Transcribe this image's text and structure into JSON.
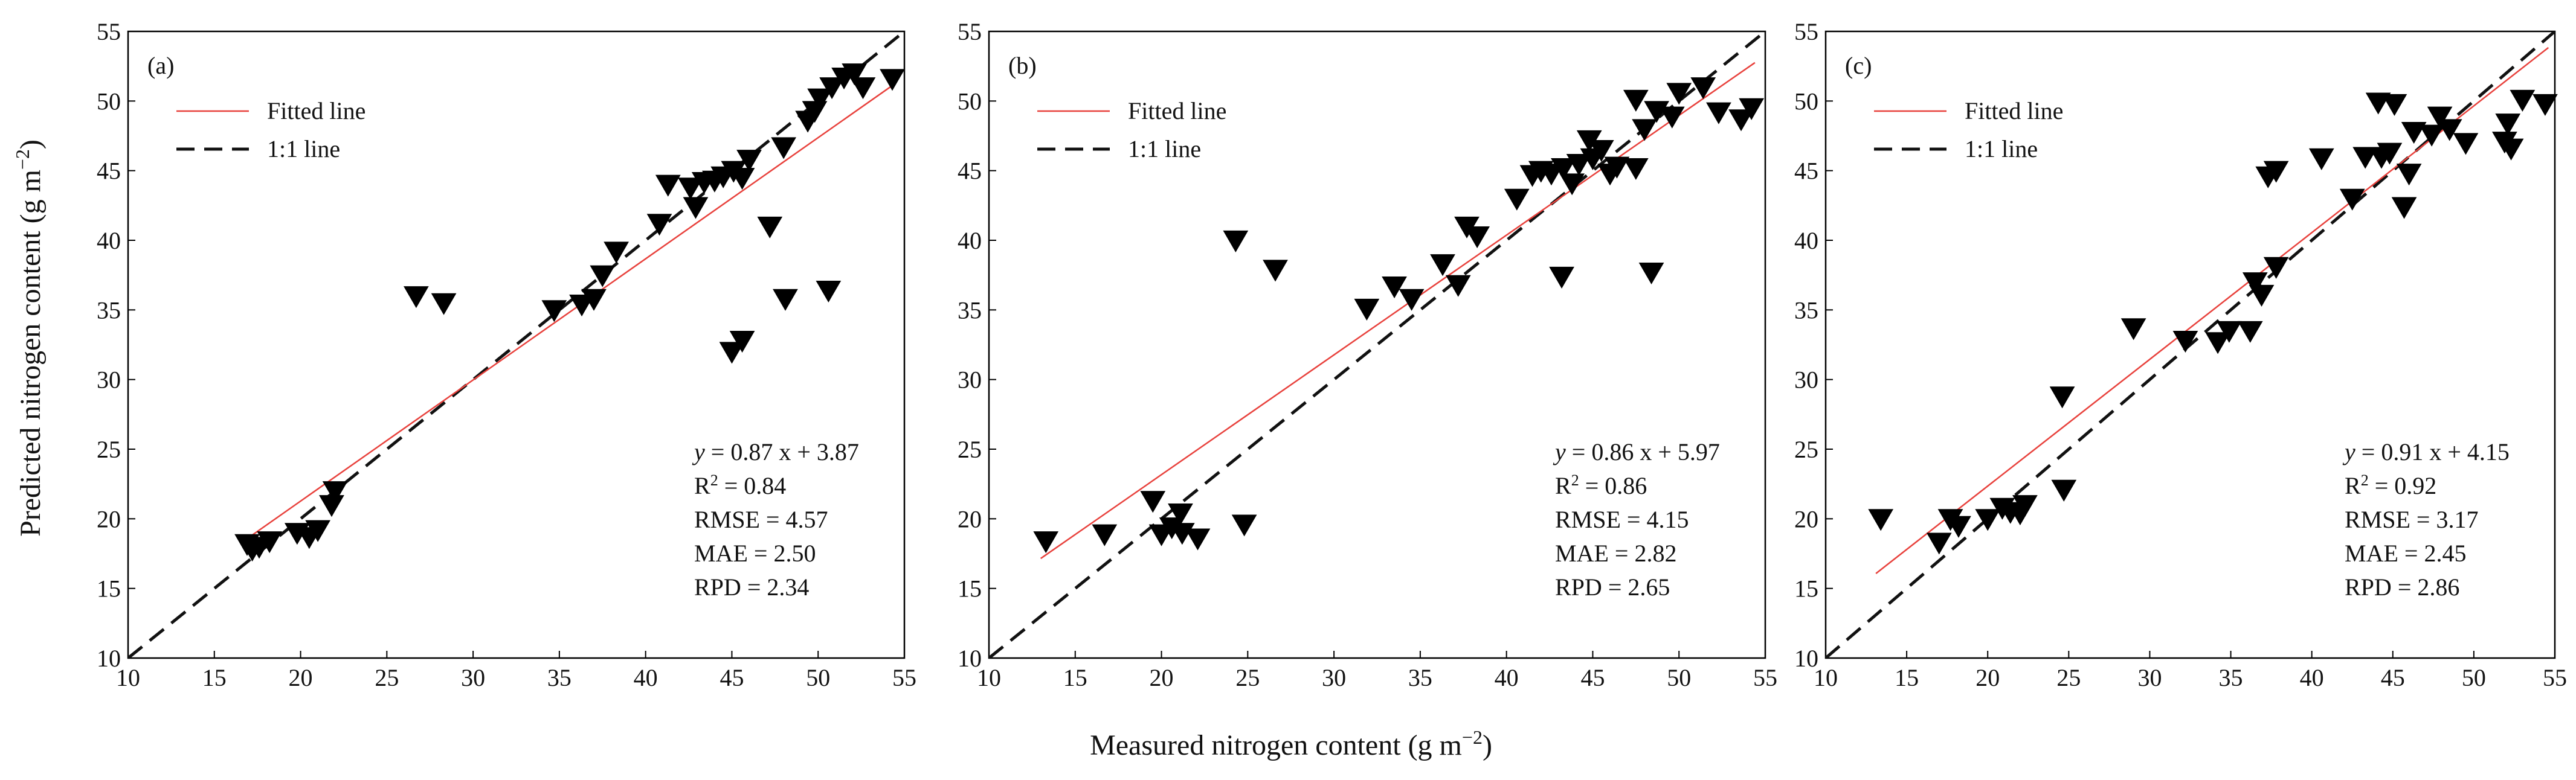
{
  "figure": {
    "ylabel": "Predicted nitrogen content (g m",
    "ylabel_exp": "−2",
    "ylabel_close": ")",
    "xlabel": "Measured nitrogen content (g m",
    "xlabel_exp": "−2",
    "xlabel_close": ")"
  },
  "colors": {
    "fitted": "#e8413c",
    "one_to_one": "#111111",
    "marker": "#000000"
  },
  "chart_data": [
    {
      "type": "scatter",
      "panel_label": "(a)",
      "xlim": [
        10,
        55
      ],
      "ylim": [
        10,
        55
      ],
      "xticks": [
        10,
        15,
        20,
        25,
        30,
        35,
        40,
        45,
        50,
        55
      ],
      "yticks": [
        10,
        15,
        20,
        25,
        30,
        35,
        40,
        45,
        50,
        55
      ],
      "legend": {
        "fitted": "Fitted line",
        "one_to_one": "1:1 line"
      },
      "fit": {
        "slope": 0.87,
        "intercept": 3.87
      },
      "stats": {
        "eq_y": "y",
        "eq_rest": " = 0.87 x + 3.87",
        "r2_prefix": "R",
        "r2_sup": "2",
        "r2_rest": " = 0.84",
        "rmse": "RMSE = 4.57",
        "mae": "MAE = 2.50",
        "rpd": "RPD = 2.34"
      },
      "points": [
        [
          16.9,
          18.2
        ],
        [
          17.2,
          17.8
        ],
        [
          17.6,
          18.0
        ],
        [
          18.2,
          18.4
        ],
        [
          19.8,
          19.0
        ],
        [
          20.5,
          18.7
        ],
        [
          21.0,
          19.2
        ],
        [
          21.8,
          21.0
        ],
        [
          22.0,
          22.0
        ],
        [
          26.7,
          36.0
        ],
        [
          28.3,
          35.5
        ],
        [
          34.7,
          35.0
        ],
        [
          36.3,
          35.4
        ],
        [
          37.0,
          35.8
        ],
        [
          37.5,
          37.5
        ],
        [
          38.3,
          39.2
        ],
        [
          40.8,
          41.2
        ],
        [
          41.3,
          44.0
        ],
        [
          42.6,
          43.8
        ],
        [
          42.9,
          42.4
        ],
        [
          43.4,
          44.2
        ],
        [
          44.0,
          44.3
        ],
        [
          44.5,
          44.6
        ],
        [
          45.1,
          45.0
        ],
        [
          45.6,
          44.5
        ],
        [
          46.0,
          45.8
        ],
        [
          45.0,
          32.0
        ],
        [
          45.6,
          32.8
        ],
        [
          47.2,
          41.0
        ],
        [
          48.1,
          35.8
        ],
        [
          48.0,
          46.7
        ],
        [
          49.4,
          48.6
        ],
        [
          49.8,
          49.3
        ],
        [
          50.1,
          50.2
        ],
        [
          50.6,
          36.4
        ],
        [
          50.8,
          51.0
        ],
        [
          51.5,
          51.7
        ],
        [
          52.1,
          52.0
        ],
        [
          52.6,
          51.0
        ],
        [
          54.3,
          51.6
        ]
      ]
    },
    {
      "type": "scatter",
      "panel_label": "(b)",
      "xlim": [
        10,
        55
      ],
      "ylim": [
        10,
        55
      ],
      "xticks": [
        10,
        15,
        20,
        25,
        30,
        35,
        40,
        45,
        50,
        55
      ],
      "yticks": [
        10,
        15,
        20,
        25,
        30,
        35,
        40,
        45,
        50,
        55
      ],
      "legend": {
        "fitted": "Fitted line",
        "one_to_one": "1:1 line"
      },
      "fit": {
        "slope": 0.86,
        "intercept": 5.97
      },
      "stats": {
        "eq_y": "y",
        "eq_rest": " = 0.86 x + 5.97",
        "r2_prefix": "R",
        "r2_sup": "2",
        "r2_rest": " = 0.86",
        "rmse": "RMSE = 4.15",
        "mae": "MAE = 2.82",
        "rpd": "RPD = 2.65"
      },
      "points": [
        [
          13.3,
          18.4
        ],
        [
          16.7,
          18.9
        ],
        [
          19.5,
          21.3
        ],
        [
          20.0,
          18.9
        ],
        [
          20.6,
          19.4
        ],
        [
          21.1,
          20.4
        ],
        [
          21.2,
          19.0
        ],
        [
          22.1,
          18.6
        ],
        [
          24.8,
          19.6
        ],
        [
          24.3,
          40.0
        ],
        [
          26.6,
          37.9
        ],
        [
          31.9,
          35.1
        ],
        [
          33.5,
          36.7
        ],
        [
          34.5,
          35.8
        ],
        [
          36.3,
          38.3
        ],
        [
          37.2,
          36.8
        ],
        [
          37.7,
          41.0
        ],
        [
          38.3,
          40.3
        ],
        [
          40.6,
          43.0
        ],
        [
          41.5,
          44.7
        ],
        [
          42.0,
          45.0
        ],
        [
          42.6,
          44.8
        ],
        [
          43.3,
          45.2
        ],
        [
          43.8,
          44.1
        ],
        [
          44.2,
          45.5
        ],
        [
          44.8,
          47.2
        ],
        [
          45.0,
          45.9
        ],
        [
          45.5,
          46.5
        ],
        [
          46.0,
          44.8
        ],
        [
          46.4,
          45.3
        ],
        [
          47.5,
          45.2
        ],
        [
          47.5,
          50.1
        ],
        [
          48.0,
          48.0
        ],
        [
          48.7,
          49.3
        ],
        [
          49.6,
          48.9
        ],
        [
          50.0,
          50.6
        ],
        [
          51.4,
          51.0
        ],
        [
          52.3,
          49.2
        ],
        [
          53.6,
          48.7
        ],
        [
          54.2,
          49.5
        ],
        [
          43.2,
          37.4
        ],
        [
          48.4,
          37.7
        ]
      ]
    },
    {
      "type": "scatter",
      "panel_label": "(c)",
      "xlim": [
        10,
        55
      ],
      "ylim": [
        10,
        55
      ],
      "xticks": [
        10,
        15,
        20,
        25,
        30,
        35,
        40,
        45,
        50,
        55
      ],
      "yticks": [
        10,
        15,
        20,
        25,
        30,
        35,
        40,
        45,
        50,
        55
      ],
      "legend": {
        "fitted": "Fitted line",
        "one_to_one": "1:1 line"
      },
      "fit": {
        "slope": 0.91,
        "intercept": 4.15
      },
      "stats": {
        "eq_y": "y",
        "eq_rest": " = 0.91 x + 4.15",
        "r2_prefix": "R",
        "r2_sup": "2",
        "r2_rest": " = 0.92",
        "rmse": "RMSE = 3.17",
        "mae": "MAE = 2.45",
        "rpd": "RPD = 2.86"
      },
      "points": [
        [
          13.4,
          20.0
        ],
        [
          17.0,
          18.3
        ],
        [
          17.7,
          20.0
        ],
        [
          18.2,
          19.5
        ],
        [
          20.0,
          20.0
        ],
        [
          20.9,
          20.8
        ],
        [
          21.4,
          20.5
        ],
        [
          22.0,
          20.4
        ],
        [
          22.3,
          21.0
        ],
        [
          24.6,
          28.8
        ],
        [
          24.7,
          22.1
        ],
        [
          29.0,
          33.7
        ],
        [
          32.2,
          32.8
        ],
        [
          34.2,
          32.7
        ],
        [
          34.9,
          33.5
        ],
        [
          36.2,
          33.5
        ],
        [
          36.5,
          37.0
        ],
        [
          36.9,
          36.1
        ],
        [
          37.3,
          44.6
        ],
        [
          37.8,
          45.0
        ],
        [
          37.8,
          38.1
        ],
        [
          40.6,
          45.9
        ],
        [
          42.5,
          43.0
        ],
        [
          44.1,
          49.9
        ],
        [
          44.3,
          46.0
        ],
        [
          44.8,
          46.3
        ],
        [
          45.1,
          49.8
        ],
        [
          45.7,
          42.4
        ],
        [
          46.0,
          44.8
        ],
        [
          46.3,
          47.8
        ],
        [
          47.4,
          47.6
        ],
        [
          47.9,
          48.9
        ],
        [
          48.5,
          48.0
        ],
        [
          49.5,
          47.0
        ],
        [
          51.9,
          47.1
        ],
        [
          52.1,
          48.4
        ],
        [
          52.3,
          46.6
        ],
        [
          53.0,
          50.1
        ],
        [
          54.4,
          49.8
        ],
        [
          43.3,
          46.0
        ]
      ]
    }
  ]
}
